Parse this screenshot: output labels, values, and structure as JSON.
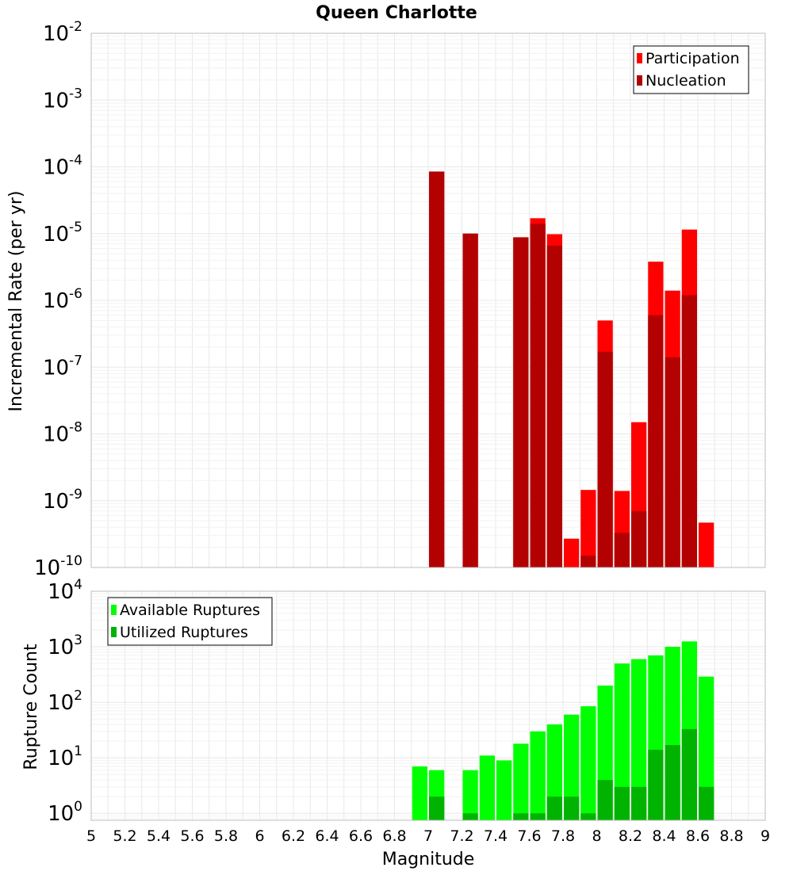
{
  "chart_data": {
    "type": "bar",
    "title": "Queen Charlotte",
    "xlabel": "Magnitude",
    "x_ticks": [
      "5",
      "5.2",
      "5.4",
      "5.6",
      "5.8",
      "6",
      "6.2",
      "6.4",
      "6.6",
      "6.8",
      "7",
      "7.2",
      "7.4",
      "7.6",
      "7.8",
      "8",
      "8.2",
      "8.4",
      "8.6",
      "8.8",
      "9"
    ],
    "xlim": [
      5,
      9
    ],
    "panels": [
      {
        "ylabel": "Incremental Rate (per yr)",
        "yscale": "log",
        "ylim": [
          1e-10,
          0.01
        ],
        "y_tick_mantissa": "10",
        "y_tick_exponents": [
          "-2",
          "-3",
          "-4",
          "-5",
          "-6",
          "-7",
          "-8",
          "-9",
          "-10"
        ],
        "legend_position": "top-right",
        "series": [
          {
            "name": "Participation",
            "color": "#ff0000",
            "x": [
              7.05,
              7.25,
              7.55,
              7.65,
              7.75,
              7.85,
              7.95,
              8.05,
              8.15,
              8.25,
              8.35,
              8.45,
              8.55,
              8.65
            ],
            "values": [
              8.5e-05,
              1e-05,
              8.8e-06,
              1.7e-05,
              9.8e-06,
              2.7e-10,
              1.45e-09,
              5e-07,
              1.4e-09,
              1.5e-08,
              3.8e-06,
              1.4e-06,
              1.15e-05,
              4.7e-10
            ]
          },
          {
            "name": "Nucleation",
            "color": "#b30000",
            "x": [
              7.05,
              7.25,
              7.55,
              7.65,
              7.75,
              7.95,
              8.05,
              8.15,
              8.25,
              8.35,
              8.45,
              8.55
            ],
            "values": [
              8.5e-05,
              1e-05,
              8.8e-06,
              1.4e-05,
              6.6e-06,
              1.5e-10,
              1.7e-07,
              3.3e-10,
              7e-10,
              6e-07,
              1.4e-07,
              1.2e-06
            ]
          }
        ]
      },
      {
        "ylabel": "Rupture Count",
        "yscale": "log",
        "ylim": [
          0.75,
          10000
        ],
        "y_tick_mantissa": "10",
        "y_tick_exponents": [
          "4",
          "3",
          "2",
          "1",
          "0"
        ],
        "legend_position": "top-left",
        "series": [
          {
            "name": "Available Ruptures",
            "color": "#00ff00",
            "x": [
              6.95,
              7.05,
              7.25,
              7.35,
              7.45,
              7.55,
              7.65,
              7.75,
              7.85,
              7.95,
              8.05,
              8.15,
              8.25,
              8.35,
              8.45,
              8.55,
              8.65
            ],
            "values": [
              7,
              6,
              6,
              11,
              9,
              18,
              30,
              40,
              60,
              85,
              200,
              500,
              600,
              700,
              1000,
              1250,
              290
            ]
          },
          {
            "name": "Utilized Ruptures",
            "color": "#00b300",
            "x": [
              7.05,
              7.25,
              7.55,
              7.65,
              7.75,
              7.85,
              7.95,
              8.05,
              8.15,
              8.25,
              8.35,
              8.45,
              8.55,
              8.65
            ],
            "values": [
              2,
              1,
              1,
              1,
              2,
              2,
              1,
              4,
              3,
              3,
              14,
              17,
              33,
              3
            ]
          }
        ]
      }
    ]
  }
}
